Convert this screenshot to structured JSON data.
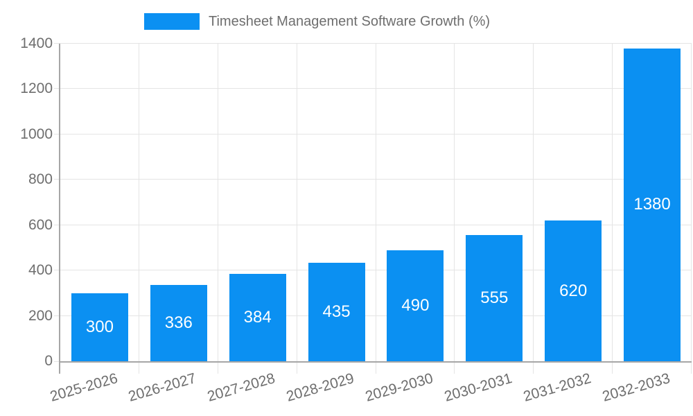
{
  "legend": {
    "series_label": "Timesheet Management Software Growth (%)"
  },
  "colors": {
    "bar": "#0b90f2",
    "bar_label": "#ffffff",
    "axis": "#a6a6a6",
    "grid": "#e4e4e4",
    "tick_text": "#6e6e6e"
  },
  "chart_data": {
    "type": "bar",
    "title": "Timesheet Management Software Growth (%)",
    "categories": [
      "2025-2026",
      "2026-2027",
      "2027-2028",
      "2028-2029",
      "2029-2030",
      "2030-2031",
      "2031-2032",
      "2032-2033"
    ],
    "values": [
      300,
      336,
      384,
      435,
      490,
      555,
      620,
      1380
    ],
    "series": [
      {
        "name": "Timesheet Management Software Growth (%)",
        "values": [
          300,
          336,
          384,
          435,
          490,
          555,
          620,
          1380
        ]
      }
    ],
    "xlabel": "",
    "ylabel": "",
    "ylim": [
      0,
      1400
    ],
    "yticks": [
      0,
      200,
      400,
      600,
      800,
      1000,
      1200,
      1400
    ],
    "grid": true,
    "legend_position": "top",
    "bar_labels": "inside-center",
    "x_tick_rotation_deg": -16
  }
}
